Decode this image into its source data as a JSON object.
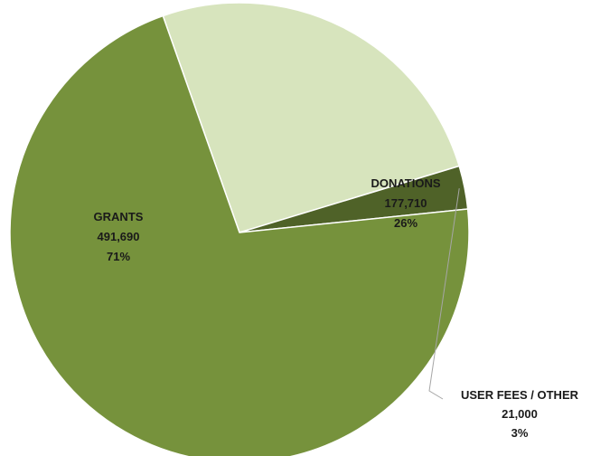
{
  "chart_data": {
    "type": "pie",
    "title": "",
    "slices": [
      {
        "label": "GRANTS",
        "value": 491690,
        "value_text": "491,690",
        "percent_text": "71%",
        "color": "#76923c"
      },
      {
        "label": "DONATIONS",
        "value": 177710,
        "value_text": "177,710",
        "percent_text": "26%",
        "color": "#d7e4bd"
      },
      {
        "label": "USER FEES / OTHER",
        "value": 21000,
        "value_text": "21,000",
        "percent_text": "3%",
        "color": "#4f6228"
      }
    ],
    "legend": "none",
    "slice_border_color": "#ffffff",
    "leader_line_color": "#a6a6a6"
  }
}
